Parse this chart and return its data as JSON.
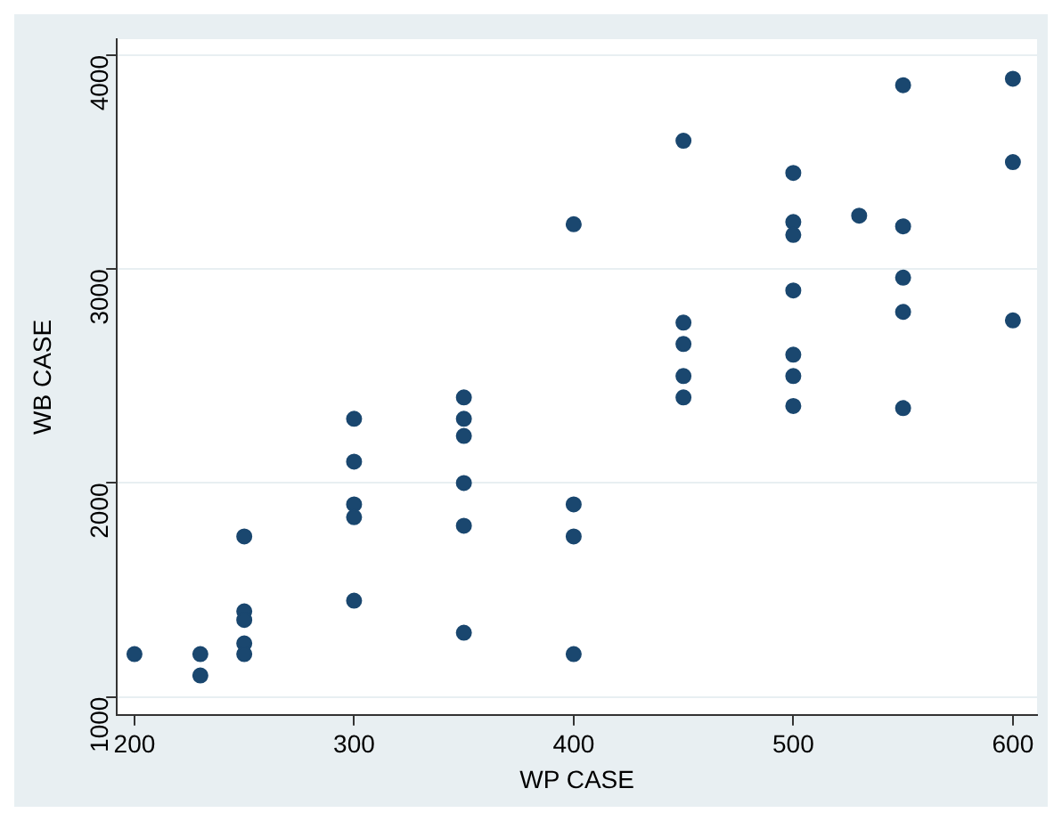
{
  "chart_data": {
    "type": "scatter",
    "xlabel": "WP CASE",
    "ylabel": "WB CASE",
    "xlim": [
      192,
      611
    ],
    "ylim": [
      916,
      4075
    ],
    "xticks": [
      200,
      300,
      400,
      500,
      600
    ],
    "yticks": [
      1000,
      2000,
      3000,
      4000
    ],
    "grid": "y",
    "legend": false,
    "marker": "circle",
    "series": [
      {
        "color": "#1a476f",
        "x": [
          200,
          230,
          230,
          250,
          250,
          250,
          250,
          250,
          300,
          300,
          300,
          300,
          300,
          350,
          350,
          350,
          350,
          350,
          350,
          400,
          400,
          400,
          400,
          450,
          450,
          450,
          450,
          450,
          500,
          500,
          500,
          500,
          500,
          500,
          500,
          530,
          550,
          550,
          550,
          550,
          550,
          600,
          600,
          600
        ],
        "values": [
          1200,
          1200,
          1100,
          1750,
          1400,
          1360,
          1250,
          1200,
          2300,
          2100,
          1900,
          1840,
          1450,
          2400,
          2300,
          2220,
          2000,
          1800,
          1300,
          3210,
          1900,
          1750,
          1200,
          3600,
          2750,
          2650,
          2500,
          2400,
          3450,
          3220,
          3160,
          2900,
          2600,
          2500,
          2360,
          3250,
          3860,
          3200,
          2960,
          2800,
          2350,
          3890,
          3500,
          2760
        ]
      }
    ]
  }
}
